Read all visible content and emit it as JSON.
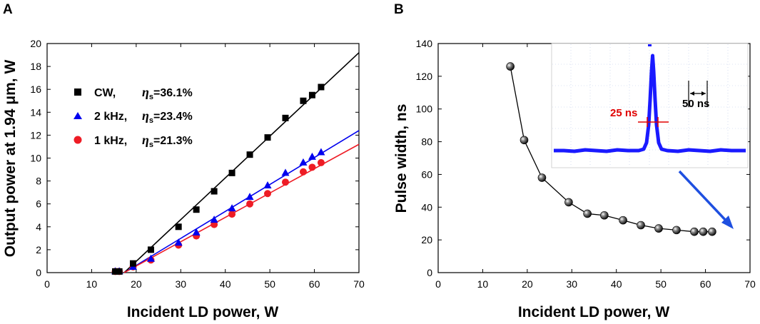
{
  "colors": {
    "cw": "#000000",
    "khz2": "#0000ee",
    "khz1": "#ee1c25",
    "inset_trace": "#1a1aff",
    "inset_arrow": "#1e4fe0",
    "inset_marker": "#e00000"
  },
  "chart_data": [
    {
      "panel": "A",
      "type": "scatter",
      "xlabel": "Incident LD power, W",
      "ylabel": "Output power at 1.94 μm, W",
      "xlim": [
        0,
        70
      ],
      "ylim": [
        0,
        20
      ],
      "xticks": [
        "0",
        "10",
        "20",
        "30",
        "40",
        "50",
        "60",
        "70"
      ],
      "yticks": [
        "0",
        "2",
        "4",
        "6",
        "8",
        "10",
        "12",
        "14",
        "16",
        "18",
        "20"
      ],
      "legend_position": "upper-left",
      "series": [
        {
          "name": "CW,",
          "label_full": "CW,     ηs=36.1%",
          "eta_symbol": "η",
          "eta_sub": "s",
          "eta_value": "=36.1%",
          "marker": "square",
          "color": "#000000",
          "x": [
            15.3,
            16.2,
            19.3,
            23.3,
            29.5,
            33.5,
            37.5,
            41.5,
            45.5,
            49.5,
            53.5,
            57.5,
            59.5,
            61.5
          ],
          "y": [
            0.1,
            0.1,
            0.8,
            2.0,
            4.0,
            5.5,
            7.1,
            8.7,
            10.3,
            11.8,
            13.5,
            15.0,
            15.5,
            16.2
          ],
          "fit": {
            "x": [
              17.3,
              70
            ],
            "y": [
              0,
              19.2
            ]
          }
        },
        {
          "name": "2 kHz,",
          "label_full": "2 kHz, ηs=23.4%",
          "eta_symbol": "η",
          "eta_sub": "s",
          "eta_value": "=23.4%",
          "marker": "triangle",
          "color": "#0000ee",
          "x": [
            15.3,
            16.2,
            19.3,
            23.3,
            29.5,
            33.5,
            37.5,
            41.5,
            45.5,
            49.5,
            53.5,
            57.5,
            59.5,
            61.5
          ],
          "y": [
            0.1,
            0.1,
            0.5,
            1.2,
            2.6,
            3.5,
            4.6,
            5.6,
            6.6,
            7.6,
            8.7,
            9.6,
            10.1,
            10.5
          ],
          "fit": {
            "x": [
              17.3,
              70
            ],
            "y": [
              0,
              12.4
            ]
          }
        },
        {
          "name": "1 kHz,",
          "label_full": "1 kHz, ηs=21.3%",
          "eta_symbol": "η",
          "eta_sub": "s",
          "eta_value": "=21.3%",
          "marker": "circle",
          "color": "#ee1c25",
          "x": [
            15.3,
            16.2,
            19.3,
            23.3,
            29.5,
            33.5,
            37.5,
            41.5,
            45.5,
            49.5,
            53.5,
            57.5,
            59.5,
            61.5
          ],
          "y": [
            0.1,
            0.1,
            0.5,
            1.1,
            2.4,
            3.2,
            4.2,
            5.1,
            6.0,
            6.9,
            7.9,
            8.8,
            9.2,
            9.6
          ],
          "fit": {
            "x": [
              17.3,
              70
            ],
            "y": [
              0,
              11.2
            ]
          }
        }
      ]
    },
    {
      "panel": "B",
      "type": "line",
      "xlabel": "Incident LD power, W",
      "ylabel": "Pulse width, ns",
      "xlim": [
        0,
        70
      ],
      "ylim": [
        0,
        140
      ],
      "xticks": [
        "0",
        "10",
        "20",
        "30",
        "40",
        "50",
        "60",
        "70"
      ],
      "yticks": [
        "0",
        "20",
        "40",
        "60",
        "80",
        "100",
        "120",
        "140"
      ],
      "series": [
        {
          "name": "Pulse width",
          "marker": "sphere",
          "color": "#000000",
          "x": [
            16.2,
            19.3,
            23.3,
            29.3,
            33.5,
            37.3,
            41.5,
            45.5,
            49.5,
            53.5,
            57.5,
            59.5,
            61.5
          ],
          "y": [
            126,
            81,
            58,
            43,
            36,
            35,
            32,
            29,
            27,
            26,
            25,
            25,
            25
          ]
        }
      ],
      "inset": {
        "description": "oscilloscope trace of single pulse",
        "width_label": "25 ns",
        "scale_label": "50 ns"
      }
    }
  ]
}
